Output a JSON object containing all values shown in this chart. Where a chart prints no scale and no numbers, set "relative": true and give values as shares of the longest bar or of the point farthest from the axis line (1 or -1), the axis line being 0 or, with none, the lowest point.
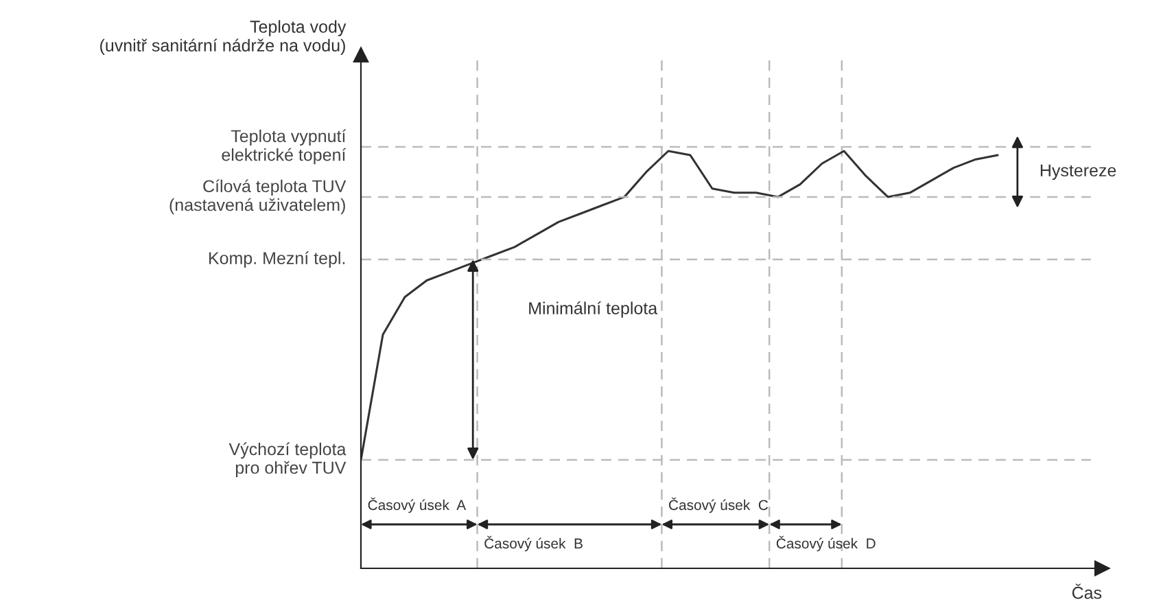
{
  "chart_data": {
    "type": "line",
    "relative": true,
    "xlabel": "Čas",
    "categories": [
      null,
      null,
      null,
      null,
      null,
      null,
      null,
      null,
      null,
      null,
      null,
      null,
      null,
      null,
      null,
      null,
      null,
      null,
      null,
      null,
      null,
      null,
      null,
      null,
      null,
      null,
      null,
      null,
      null,
      null
    ],
    "series": [
      {
        "color": "#333333",
        "values": [
          0.26,
          0.56,
          0.65,
          0.69,
          0.71,
          0.73,
          0.75,
          0.77,
          0.8,
          0.83,
          0.85,
          0.87,
          0.89,
          0.95,
          1.0,
          0.99,
          0.91,
          0.9,
          0.9,
          0.89,
          0.92,
          0.97,
          1.0,
          0.94,
          0.89,
          0.9,
          0.93,
          0.96,
          0.98,
          0.99
        ]
      }
    ],
    "ref_lines": [
      {
        "axis": "y",
        "value": 0.26,
        "label": "Výchozí teplota\npro ohřev TUV",
        "color": "#bbbbbb",
        "line_style": "dashed"
      },
      {
        "axis": "y",
        "value": 0.74,
        "label": "Komp. Mezní tepl.",
        "color": "#bbbbbb",
        "line_style": "dashed"
      },
      {
        "axis": "y",
        "value": 0.89,
        "label": "Cílová teplota TUV\n(nastavená uživatelem)",
        "color": "#bbbbbb",
        "line_style": "dashed"
      },
      {
        "axis": "y",
        "value": 1.01,
        "label": "Teplota vypnutí\nelektrické topení",
        "color": "#bbbbbb",
        "line_style": "dashed"
      }
    ],
    "annotations": [
      "Minimální teplota",
      "Hystereze",
      "Časový úsek  A",
      "Časový úsek  B",
      "Časový úsek  C",
      "Časový úsek  D",
      "Teplota vody\n(uvnitř sanitární nádrže na vodu)"
    ],
    "line_style": "solid",
    "marker": "none",
    "legend": false
  }
}
